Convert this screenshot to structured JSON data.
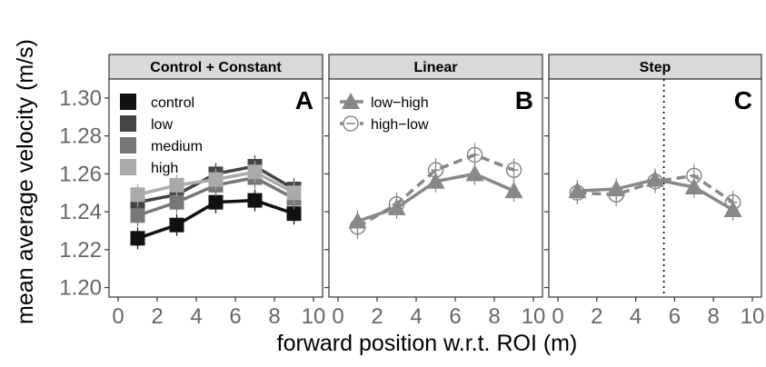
{
  "chart_data": [
    {
      "type": "line",
      "strip_title": "Control + Constant",
      "panel_letter": "A",
      "x": [
        1,
        3,
        5,
        7,
        9
      ],
      "series": [
        {
          "name": "control",
          "values": [
            1.226,
            1.233,
            1.245,
            1.246,
            1.239
          ],
          "color": "#111111",
          "marker": "square",
          "dashed": false
        },
        {
          "name": "low",
          "values": [
            1.245,
            1.249,
            1.26,
            1.264,
            1.252
          ],
          "color": "#444444",
          "marker": "square",
          "dashed": false
        },
        {
          "name": "medium",
          "values": [
            1.238,
            1.245,
            1.254,
            1.258,
            1.247
          ],
          "color": "#777777",
          "marker": "square",
          "dashed": false
        },
        {
          "name": "high",
          "values": [
            1.249,
            1.254,
            1.257,
            1.261,
            1.25
          ],
          "color": "#aaaaaa",
          "marker": "square",
          "dashed": false
        }
      ],
      "xlim": [
        0,
        10
      ],
      "ylim": [
        1.195,
        1.31
      ]
    },
    {
      "type": "line",
      "strip_title": "Linear",
      "panel_letter": "B",
      "x": [
        1,
        3,
        5,
        7,
        9
      ],
      "series": [
        {
          "name": "low−high",
          "values": [
            1.235,
            1.242,
            1.256,
            1.26,
            1.251
          ],
          "color": "#888888",
          "marker": "triangle",
          "dashed": false
        },
        {
          "name": "high−low",
          "values": [
            1.232,
            1.244,
            1.262,
            1.27,
            1.262
          ],
          "color": "#888888",
          "marker": "circle",
          "dashed": true
        }
      ],
      "xlim": [
        0,
        10
      ],
      "ylim": [
        1.195,
        1.31
      ]
    },
    {
      "type": "line",
      "strip_title": "Step",
      "panel_letter": "C",
      "x": [
        1,
        3,
        5,
        7,
        9
      ],
      "series": [
        {
          "name": "low−high",
          "values": [
            1.251,
            1.252,
            1.257,
            1.253,
            1.241
          ],
          "color": "#888888",
          "marker": "triangle",
          "dashed": false
        },
        {
          "name": "high−low",
          "values": [
            1.25,
            1.249,
            1.256,
            1.259,
            1.245
          ],
          "color": "#888888",
          "marker": "circle",
          "dashed": true
        }
      ],
      "vline_x": 5.45,
      "xlim": [
        0,
        10
      ],
      "ylim": [
        1.195,
        1.31
      ]
    }
  ],
  "axes": {
    "xlabel": "forward position w.r.t. ROI (m)",
    "ylabel": "mean average velocity (m/s)",
    "yticks": [
      1.2,
      1.22,
      1.24,
      1.26,
      1.28,
      1.3
    ],
    "xticks": [
      0,
      2,
      4,
      6,
      8,
      10
    ]
  }
}
